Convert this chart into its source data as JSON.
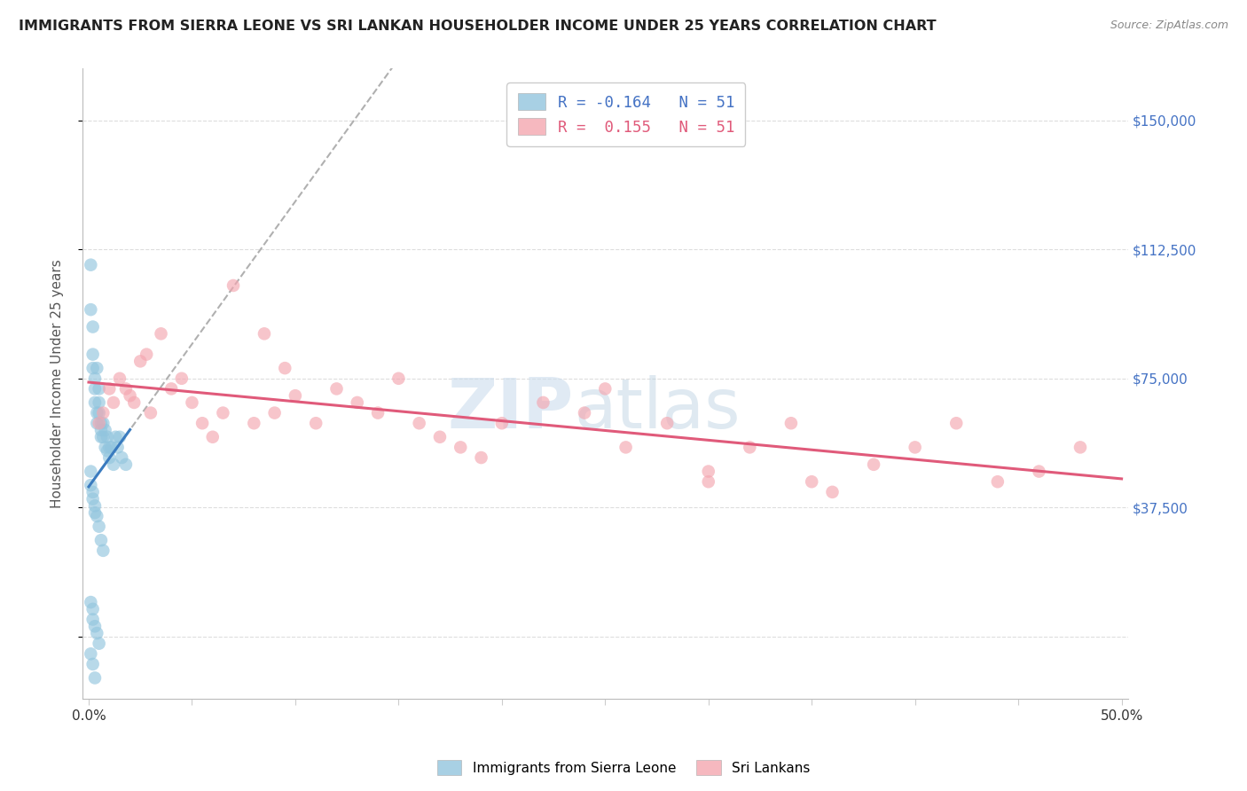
{
  "title": "IMMIGRANTS FROM SIERRA LEONE VS SRI LANKAN HOUSEHOLDER INCOME UNDER 25 YEARS CORRELATION CHART",
  "source": "Source: ZipAtlas.com",
  "ylabel": "Householder Income Under 25 years",
  "r_blue": -0.164,
  "r_pink": 0.155,
  "n_blue": 51,
  "n_pink": 51,
  "xlim": [
    -0.003,
    0.503
  ],
  "ylim": [
    -18000,
    165000
  ],
  "yticks": [
    0,
    37500,
    75000,
    112500,
    150000
  ],
  "ytick_labels": [
    "",
    "$37,500",
    "$75,000",
    "$112,500",
    "$150,000"
  ],
  "xticks": [
    0.0,
    0.05,
    0.1,
    0.15,
    0.2,
    0.25,
    0.3,
    0.35,
    0.4,
    0.45,
    0.5
  ],
  "blue_color": "#92c5de",
  "pink_color": "#f4a6b0",
  "blue_line_color": "#3a7bbf",
  "pink_line_color": "#e05a7a",
  "blue_scatter_x": [
    0.001,
    0.001,
    0.002,
    0.002,
    0.002,
    0.003,
    0.003,
    0.003,
    0.004,
    0.004,
    0.004,
    0.005,
    0.005,
    0.005,
    0.006,
    0.006,
    0.006,
    0.007,
    0.007,
    0.008,
    0.008,
    0.009,
    0.009,
    0.01,
    0.01,
    0.011,
    0.012,
    0.013,
    0.014,
    0.015,
    0.016,
    0.018,
    0.001,
    0.001,
    0.002,
    0.002,
    0.003,
    0.003,
    0.004,
    0.005,
    0.006,
    0.007,
    0.001,
    0.002,
    0.002,
    0.003,
    0.004,
    0.005,
    0.001,
    0.002,
    0.003
  ],
  "blue_scatter_y": [
    108000,
    95000,
    90000,
    82000,
    78000,
    75000,
    72000,
    68000,
    65000,
    62000,
    78000,
    72000,
    68000,
    65000,
    62000,
    60000,
    58000,
    62000,
    58000,
    60000,
    55000,
    58000,
    54000,
    55000,
    52000,
    55000,
    50000,
    58000,
    55000,
    58000,
    52000,
    50000,
    48000,
    44000,
    42000,
    40000,
    38000,
    36000,
    35000,
    32000,
    28000,
    25000,
    10000,
    8000,
    5000,
    3000,
    1000,
    -2000,
    -5000,
    -8000,
    -12000
  ],
  "pink_scatter_x": [
    0.005,
    0.007,
    0.01,
    0.012,
    0.015,
    0.018,
    0.02,
    0.022,
    0.025,
    0.028,
    0.03,
    0.035,
    0.04,
    0.045,
    0.05,
    0.055,
    0.06,
    0.065,
    0.07,
    0.08,
    0.085,
    0.09,
    0.095,
    0.1,
    0.11,
    0.12,
    0.13,
    0.14,
    0.15,
    0.16,
    0.17,
    0.18,
    0.19,
    0.2,
    0.22,
    0.24,
    0.26,
    0.28,
    0.3,
    0.32,
    0.34,
    0.36,
    0.38,
    0.4,
    0.42,
    0.44,
    0.46,
    0.48,
    0.25,
    0.3,
    0.35
  ],
  "pink_scatter_y": [
    62000,
    65000,
    72000,
    68000,
    75000,
    72000,
    70000,
    68000,
    80000,
    82000,
    65000,
    88000,
    72000,
    75000,
    68000,
    62000,
    58000,
    65000,
    102000,
    62000,
    88000,
    65000,
    78000,
    70000,
    62000,
    72000,
    68000,
    65000,
    75000,
    62000,
    58000,
    55000,
    52000,
    62000,
    68000,
    65000,
    55000,
    62000,
    48000,
    55000,
    62000,
    42000,
    50000,
    55000,
    62000,
    45000,
    48000,
    55000,
    72000,
    45000,
    45000
  ]
}
